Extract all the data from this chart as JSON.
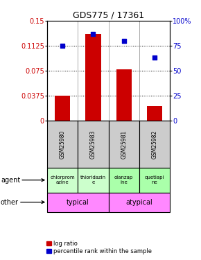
{
  "title": "GDS775 / 17361",
  "samples": [
    "GSM25980",
    "GSM25983",
    "GSM25981",
    "GSM25982"
  ],
  "log_ratios": [
    0.0375,
    0.13,
    0.077,
    0.022
  ],
  "percentile_ranks": [
    0.75,
    0.87,
    0.8,
    0.635
  ],
  "ylim_left": [
    0,
    0.15
  ],
  "ylim_right": [
    0,
    1.0
  ],
  "yticks_left": [
    0,
    0.0375,
    0.075,
    0.1125,
    0.15
  ],
  "ytick_labels_left": [
    "0",
    "0.0375",
    "0.075",
    "0.1125",
    "0.15"
  ],
  "yticks_right": [
    0,
    0.25,
    0.5,
    0.75,
    1.0
  ],
  "ytick_labels_right": [
    "0",
    "25",
    "50",
    "75",
    "100%"
  ],
  "bar_color": "#cc0000",
  "dot_color": "#0000cc",
  "agent_labels": [
    "chlorprom\nazine",
    "thioridazin\ne",
    "olanzap\nine",
    "quetiapi\nne"
  ],
  "agent_colors": [
    "#ccffcc",
    "#ccffcc",
    "#aaffaa",
    "#aaffaa"
  ],
  "other_labels": [
    "typical",
    "atypical"
  ],
  "other_color": "#ff88ff",
  "sample_bg_color": "#cccccc",
  "left_label_color": "#cc0000",
  "right_label_color": "#0000cc",
  "left_labels_outside": [
    "agent",
    "other"
  ],
  "legend_labels": [
    "log ratio",
    "percentile rank within the sample"
  ]
}
